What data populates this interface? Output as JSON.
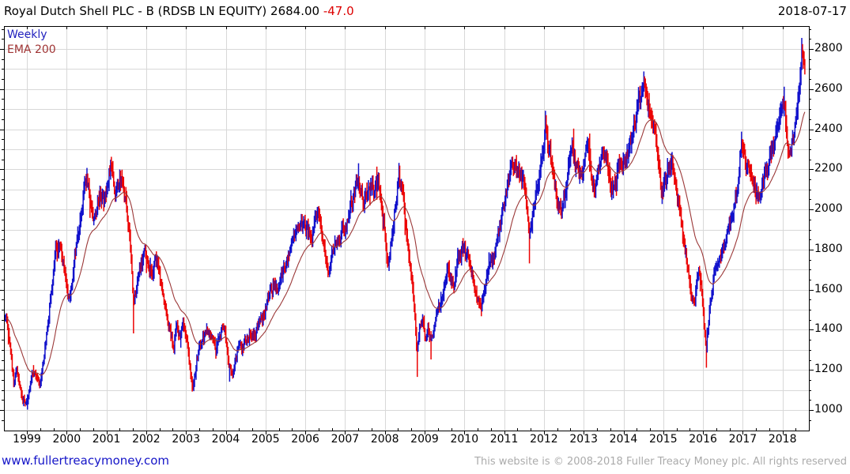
{
  "header": {
    "title": "Royal Dutch Shell PLC - B (RDSB LN EQUITY)",
    "last_price": "2684.00",
    "change": "-47.0",
    "date": "2018-07-17"
  },
  "legend": {
    "series_label": "Weekly",
    "ema_label": "EMA 200"
  },
  "footer": {
    "link": "www.fullertreacymoney.com",
    "copyright": "This website is © 2008-2018 Fuller Treacy Money plc. All rights reserved"
  },
  "chart_data": {
    "type": "candlestick",
    "title": "Royal Dutch Shell PLC - B (RDSB LN EQUITY)",
    "interval": "Weekly",
    "overlay": "EMA 200",
    "last_close": 2684.0,
    "last_change": -47.0,
    "xlim": [
      1998.42,
      2018.56
    ],
    "ylim": [
      900,
      2915
    ],
    "x_ticks": [
      1999,
      2000,
      2001,
      2002,
      2003,
      2004,
      2005,
      2006,
      2007,
      2008,
      2009,
      2010,
      2011,
      2012,
      2013,
      2014,
      2015,
      2016,
      2017,
      2018
    ],
    "y_ticks": [
      1000,
      1200,
      1400,
      1600,
      1800,
      2000,
      2200,
      2400,
      2600,
      2800
    ],
    "y_grid_step": 100,
    "y_minor_step": 50,
    "grid_on": true,
    "up_color": "#1212cc",
    "down_color": "#ec0404",
    "ema_color": "#9b3838",
    "grid_color": "#d8d8d8",
    "axis_color": "#000000",
    "series_keyframes": [
      [
        1998.42,
        1470
      ],
      [
        1998.5,
        1420
      ],
      [
        1998.58,
        1290
      ],
      [
        1998.67,
        1130
      ],
      [
        1998.75,
        1210
      ],
      [
        1998.83,
        1100
      ],
      [
        1998.92,
        1060
      ],
      [
        1999.02,
        1035
      ],
      [
        1999.1,
        1160
      ],
      [
        1999.21,
        1190
      ],
      [
        1999.33,
        1120
      ],
      [
        1999.42,
        1250
      ],
      [
        1999.52,
        1420
      ],
      [
        1999.63,
        1620
      ],
      [
        1999.73,
        1800
      ],
      [
        1999.83,
        1830
      ],
      [
        1999.92,
        1740
      ],
      [
        2000.0,
        1630
      ],
      [
        2000.06,
        1560
      ],
      [
        2000.15,
        1680
      ],
      [
        2000.25,
        1830
      ],
      [
        2000.35,
        1990
      ],
      [
        2000.46,
        2130
      ],
      [
        2000.52,
        2180
      ],
      [
        2000.6,
        2030
      ],
      [
        2000.69,
        1930
      ],
      [
        2000.77,
        2000
      ],
      [
        2000.85,
        2080
      ],
      [
        2000.94,
        2030
      ],
      [
        2001.02,
        2130
      ],
      [
        2001.1,
        2225
      ],
      [
        2001.17,
        2150
      ],
      [
        2001.25,
        2080
      ],
      [
        2001.33,
        2140
      ],
      [
        2001.42,
        2130
      ],
      [
        2001.5,
        2010
      ],
      [
        2001.58,
        1900
      ],
      [
        2001.69,
        1500
      ],
      [
        2001.73,
        1570
      ],
      [
        2001.81,
        1680
      ],
      [
        2001.9,
        1760
      ],
      [
        2001.98,
        1780
      ],
      [
        2002.06,
        1720
      ],
      [
        2002.15,
        1660
      ],
      [
        2002.23,
        1740
      ],
      [
        2002.33,
        1690
      ],
      [
        2002.42,
        1590
      ],
      [
        2002.52,
        1480
      ],
      [
        2002.6,
        1400
      ],
      [
        2002.69,
        1310
      ],
      [
        2002.77,
        1420
      ],
      [
        2002.85,
        1380
      ],
      [
        2002.94,
        1430
      ],
      [
        2003.04,
        1330
      ],
      [
        2003.13,
        1160
      ],
      [
        2003.19,
        1120
      ],
      [
        2003.27,
        1250
      ],
      [
        2003.35,
        1320
      ],
      [
        2003.46,
        1360
      ],
      [
        2003.56,
        1390
      ],
      [
        2003.65,
        1360
      ],
      [
        2003.75,
        1310
      ],
      [
        2003.85,
        1380
      ],
      [
        2003.94,
        1430
      ],
      [
        2004.02,
        1330
      ],
      [
        2004.08,
        1220
      ],
      [
        2004.17,
        1170
      ],
      [
        2004.25,
        1260
      ],
      [
        2004.33,
        1330
      ],
      [
        2004.44,
        1300
      ],
      [
        2004.54,
        1360
      ],
      [
        2004.63,
        1390
      ],
      [
        2004.73,
        1380
      ],
      [
        2004.83,
        1420
      ],
      [
        2004.92,
        1460
      ],
      [
        2005.02,
        1520
      ],
      [
        2005.1,
        1580
      ],
      [
        2005.19,
        1620
      ],
      [
        2005.29,
        1600
      ],
      [
        2005.38,
        1650
      ],
      [
        2005.48,
        1700
      ],
      [
        2005.58,
        1760
      ],
      [
        2005.67,
        1830
      ],
      [
        2005.77,
        1870
      ],
      [
        2005.85,
        1900
      ],
      [
        2005.94,
        1930
      ],
      [
        2006.04,
        1910
      ],
      [
        2006.13,
        1860
      ],
      [
        2006.21,
        1900
      ],
      [
        2006.31,
        1980
      ],
      [
        2006.4,
        1900
      ],
      [
        2006.5,
        1780
      ],
      [
        2006.58,
        1700
      ],
      [
        2006.67,
        1760
      ],
      [
        2006.77,
        1830
      ],
      [
        2006.85,
        1870
      ],
      [
        2006.94,
        1900
      ],
      [
        2007.04,
        1930
      ],
      [
        2007.13,
        1990
      ],
      [
        2007.21,
        2060
      ],
      [
        2007.31,
        2130
      ],
      [
        2007.4,
        2080
      ],
      [
        2007.48,
        2010
      ],
      [
        2007.56,
        2090
      ],
      [
        2007.65,
        2140
      ],
      [
        2007.75,
        2080
      ],
      [
        2007.83,
        2110
      ],
      [
        2007.92,
        2030
      ],
      [
        2008.0,
        1890
      ],
      [
        2008.08,
        1680
      ],
      [
        2008.13,
        1780
      ],
      [
        2008.21,
        1930
      ],
      [
        2008.29,
        2060
      ],
      [
        2008.35,
        2180
      ],
      [
        2008.42,
        2090
      ],
      [
        2008.5,
        1950
      ],
      [
        2008.58,
        1830
      ],
      [
        2008.67,
        1680
      ],
      [
        2008.75,
        1480
      ],
      [
        2008.81,
        1280
      ],
      [
        2008.88,
        1430
      ],
      [
        2008.94,
        1470
      ],
      [
        2009.02,
        1330
      ],
      [
        2009.1,
        1400
      ],
      [
        2009.17,
        1340
      ],
      [
        2009.25,
        1430
      ],
      [
        2009.33,
        1500
      ],
      [
        2009.42,
        1540
      ],
      [
        2009.5,
        1620
      ],
      [
        2009.58,
        1720
      ],
      [
        2009.65,
        1680
      ],
      [
        2009.73,
        1620
      ],
      [
        2009.81,
        1720
      ],
      [
        2009.9,
        1770
      ],
      [
        2009.98,
        1810
      ],
      [
        2010.06,
        1760
      ],
      [
        2010.15,
        1710
      ],
      [
        2010.23,
        1640
      ],
      [
        2010.33,
        1580
      ],
      [
        2010.42,
        1520
      ],
      [
        2010.48,
        1560
      ],
      [
        2010.56,
        1640
      ],
      [
        2010.65,
        1710
      ],
      [
        2010.75,
        1770
      ],
      [
        2010.83,
        1850
      ],
      [
        2010.92,
        1940
      ],
      [
        2011.0,
        2030
      ],
      [
        2011.08,
        2120
      ],
      [
        2011.17,
        2200
      ],
      [
        2011.25,
        2240
      ],
      [
        2011.33,
        2180
      ],
      [
        2011.42,
        2210
      ],
      [
        2011.5,
        2120
      ],
      [
        2011.58,
        1970
      ],
      [
        2011.63,
        1840
      ],
      [
        2011.69,
        1960
      ],
      [
        2011.77,
        2040
      ],
      [
        2011.85,
        2130
      ],
      [
        2011.94,
        2240
      ],
      [
        2012.0,
        2330
      ],
      [
        2012.04,
        2440
      ],
      [
        2012.1,
        2340
      ],
      [
        2012.19,
        2220
      ],
      [
        2012.29,
        2110
      ],
      [
        2012.38,
        2020
      ],
      [
        2012.46,
        1990
      ],
      [
        2012.54,
        2110
      ],
      [
        2012.63,
        2230
      ],
      [
        2012.71,
        2320
      ],
      [
        2012.79,
        2240
      ],
      [
        2012.88,
        2160
      ],
      [
        2012.96,
        2190
      ],
      [
        2013.04,
        2260
      ],
      [
        2013.13,
        2320
      ],
      [
        2013.19,
        2200
      ],
      [
        2013.27,
        2100
      ],
      [
        2013.35,
        2160
      ],
      [
        2013.44,
        2280
      ],
      [
        2013.52,
        2310
      ],
      [
        2013.6,
        2220
      ],
      [
        2013.69,
        2130
      ],
      [
        2013.77,
        2090
      ],
      [
        2013.85,
        2180
      ],
      [
        2013.94,
        2260
      ],
      [
        2014.02,
        2230
      ],
      [
        2014.1,
        2280
      ],
      [
        2014.19,
        2350
      ],
      [
        2014.29,
        2440
      ],
      [
        2014.38,
        2520
      ],
      [
        2014.48,
        2590
      ],
      [
        2014.54,
        2610
      ],
      [
        2014.63,
        2520
      ],
      [
        2014.71,
        2440
      ],
      [
        2014.79,
        2360
      ],
      [
        2014.88,
        2210
      ],
      [
        2014.96,
        2060
      ],
      [
        2015.04,
        2120
      ],
      [
        2015.13,
        2200
      ],
      [
        2015.21,
        2230
      ],
      [
        2015.29,
        2130
      ],
      [
        2015.38,
        2040
      ],
      [
        2015.46,
        1920
      ],
      [
        2015.54,
        1830
      ],
      [
        2015.63,
        1700
      ],
      [
        2015.71,
        1560
      ],
      [
        2015.79,
        1530
      ],
      [
        2015.85,
        1640
      ],
      [
        2015.92,
        1680
      ],
      [
        2015.98,
        1560
      ],
      [
        2016.04,
        1390
      ],
      [
        2016.08,
        1290
      ],
      [
        2016.13,
        1430
      ],
      [
        2016.19,
        1560
      ],
      [
        2016.27,
        1650
      ],
      [
        2016.35,
        1700
      ],
      [
        2016.44,
        1740
      ],
      [
        2016.52,
        1810
      ],
      [
        2016.6,
        1880
      ],
      [
        2016.69,
        1940
      ],
      [
        2016.77,
        2010
      ],
      [
        2016.85,
        2100
      ],
      [
        2016.94,
        2280
      ],
      [
        2016.98,
        2350
      ],
      [
        2017.06,
        2270
      ],
      [
        2017.15,
        2180
      ],
      [
        2017.23,
        2110
      ],
      [
        2017.31,
        2070
      ],
      [
        2017.4,
        2040
      ],
      [
        2017.48,
        2090
      ],
      [
        2017.56,
        2160
      ],
      [
        2017.65,
        2220
      ],
      [
        2017.73,
        2280
      ],
      [
        2017.81,
        2350
      ],
      [
        2017.9,
        2420
      ],
      [
        2017.98,
        2500
      ],
      [
        2018.04,
        2560
      ],
      [
        2018.1,
        2420
      ],
      [
        2018.15,
        2280
      ],
      [
        2018.19,
        2230
      ],
      [
        2018.25,
        2330
      ],
      [
        2018.31,
        2420
      ],
      [
        2018.38,
        2520
      ],
      [
        2018.44,
        2650
      ],
      [
        2018.48,
        2780
      ],
      [
        2018.52,
        2740
      ],
      [
        2018.56,
        2684
      ]
    ],
    "forced_extremes": [
      [
        1999.02,
        "low",
        1002
      ],
      [
        2000.52,
        "high",
        2207
      ],
      [
        2001.1,
        "high",
        2248
      ],
      [
        2001.69,
        "low",
        1382
      ],
      [
        2003.16,
        "low",
        1092
      ],
      [
        2004.1,
        "low",
        1141
      ],
      [
        2008.35,
        "high",
        2232
      ],
      [
        2008.81,
        "low",
        1165
      ],
      [
        2009.17,
        "low",
        1252
      ],
      [
        2011.63,
        "low",
        1731
      ],
      [
        2012.04,
        "high",
        2492
      ],
      [
        2014.53,
        "high",
        2626
      ],
      [
        2016.08,
        "low",
        1211
      ],
      [
        2016.97,
        "high",
        2388
      ],
      [
        2018.04,
        "high",
        2612
      ],
      [
        2018.48,
        "high",
        2855
      ]
    ]
  }
}
